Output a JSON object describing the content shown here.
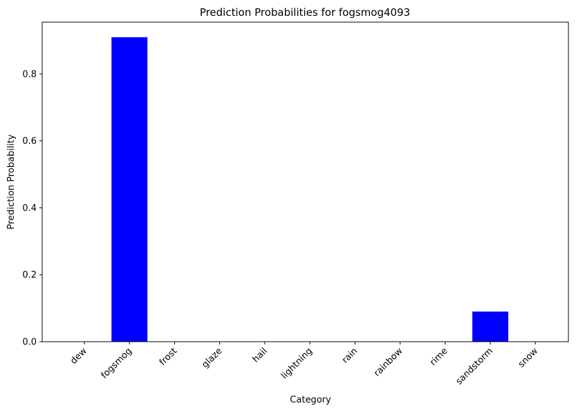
{
  "chart_data": {
    "type": "bar",
    "title": "Prediction Probabilities for fogsmog4093",
    "xlabel": "Category",
    "ylabel": "Prediction Probability",
    "categories": [
      "dew",
      "fogsmog",
      "frost",
      "glaze",
      "hail",
      "lightning",
      "rain",
      "rainbow",
      "rime",
      "sandstorm",
      "snow"
    ],
    "values": [
      0.0,
      0.91,
      0.0,
      0.0,
      0.0,
      0.0,
      0.0,
      0.0,
      0.0,
      0.09,
      0.0
    ],
    "ylim": [
      0,
      0.955
    ],
    "yticks": [
      0.0,
      0.2,
      0.4,
      0.6,
      0.8
    ],
    "ytick_labels": [
      "0.0",
      "0.2",
      "0.4",
      "0.6",
      "0.8"
    ],
    "bar_color": "#0000ff",
    "grid": false,
    "legend": "none"
  }
}
